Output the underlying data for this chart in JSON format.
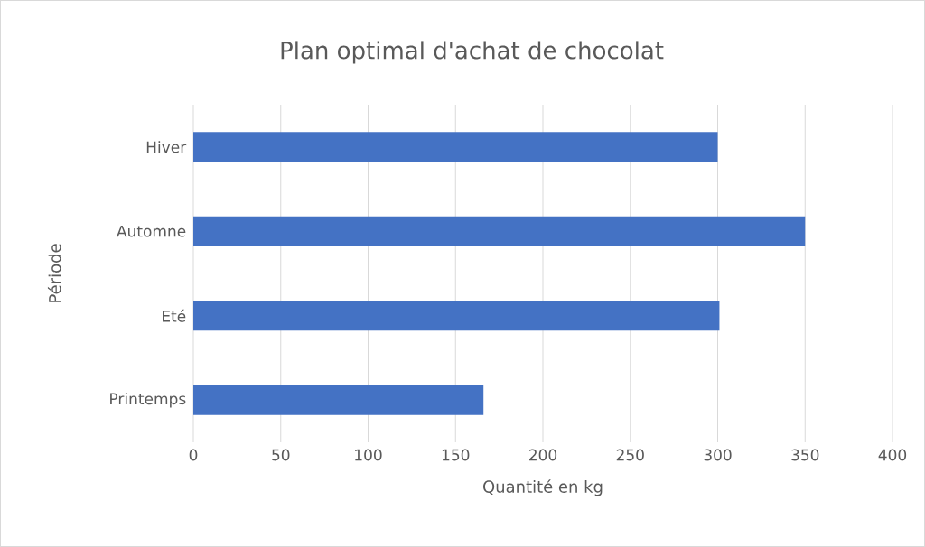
{
  "chart_data": {
    "type": "bar",
    "orientation": "horizontal",
    "title": "Plan optimal d'achat de chocolat",
    "xlabel": "Quantité en kg",
    "ylabel": "Période",
    "categories": [
      "Hiver",
      "Automne",
      "Eté",
      "Printemps"
    ],
    "values": [
      300,
      350,
      301,
      166
    ],
    "color": "#4472c4",
    "xlim": [
      0,
      400
    ],
    "xticks": [
      0,
      50,
      100,
      150,
      200,
      250,
      300,
      350,
      400
    ],
    "grid": "x"
  }
}
